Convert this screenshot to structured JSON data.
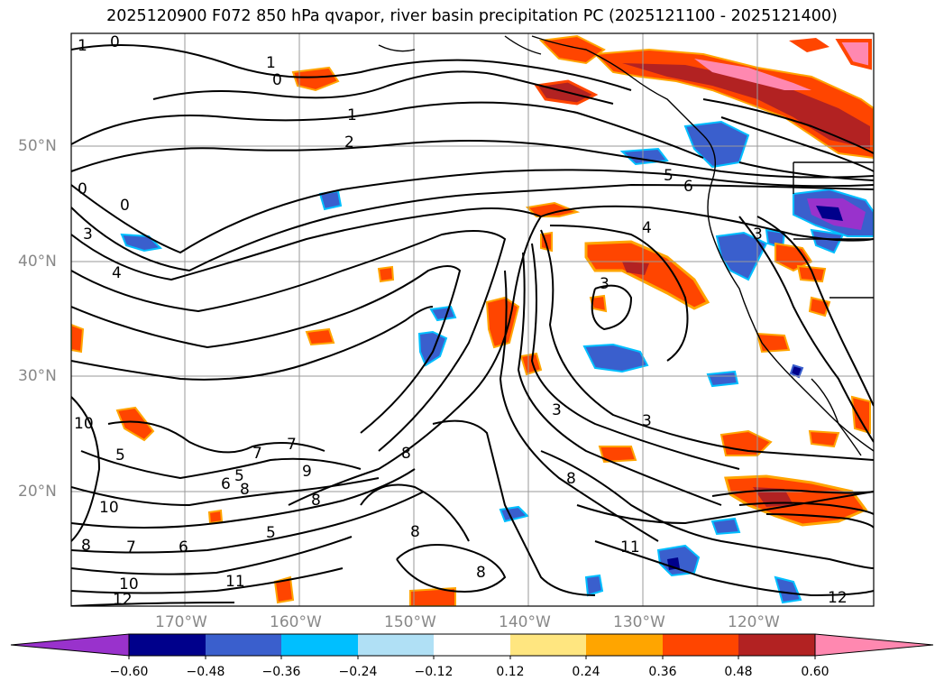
{
  "title": "2025120900 F072 850 hPa qvapor, river basin precipitation PC (2025121100 - 2025121400)",
  "map": {
    "lat_labels": [
      "50°N",
      "40°N",
      "30°N",
      "20°N"
    ],
    "lon_labels": [
      "170°W",
      "160°W",
      "150°W",
      "140°W",
      "130°W",
      "120°W"
    ],
    "contour_labels": [
      "1",
      "0",
      "1",
      "0",
      "1",
      "2",
      "0",
      "0",
      "3",
      "4",
      "3",
      "10",
      "5",
      "7",
      "7",
      "5",
      "6",
      "8",
      "8",
      "10",
      "8",
      "9",
      "6",
      "7",
      "5",
      "11",
      "10",
      "12",
      "8",
      "8",
      "8",
      "8",
      "3",
      "3",
      "4",
      "5",
      "6",
      "11",
      "12",
      "3"
    ],
    "colors": {
      "precip_neg": [
        "#9932cc",
        "#00008b",
        "#3a5fcd",
        "#00bfff",
        "#b0e0f5"
      ],
      "precip_pos": [
        "#ffe680",
        "#ffa500",
        "#ff4500",
        "#b22222",
        "#ff88b0"
      ],
      "contour": "#000000",
      "grid": "#999999",
      "coast": "#000000"
    }
  },
  "colorbar": {
    "labels": [
      "−0.60",
      "−0.48",
      "−0.36",
      "−0.24",
      "−0.12",
      "0.12",
      "0.24",
      "0.36",
      "0.48",
      "0.60"
    ],
    "colors": [
      "#9932cc",
      "#00008b",
      "#3a5fcd",
      "#00bfff",
      "#b0e0f5",
      "#ffffff",
      "#ffe680",
      "#ffa500",
      "#ff4500",
      "#b22222",
      "#ff88b0"
    ]
  }
}
